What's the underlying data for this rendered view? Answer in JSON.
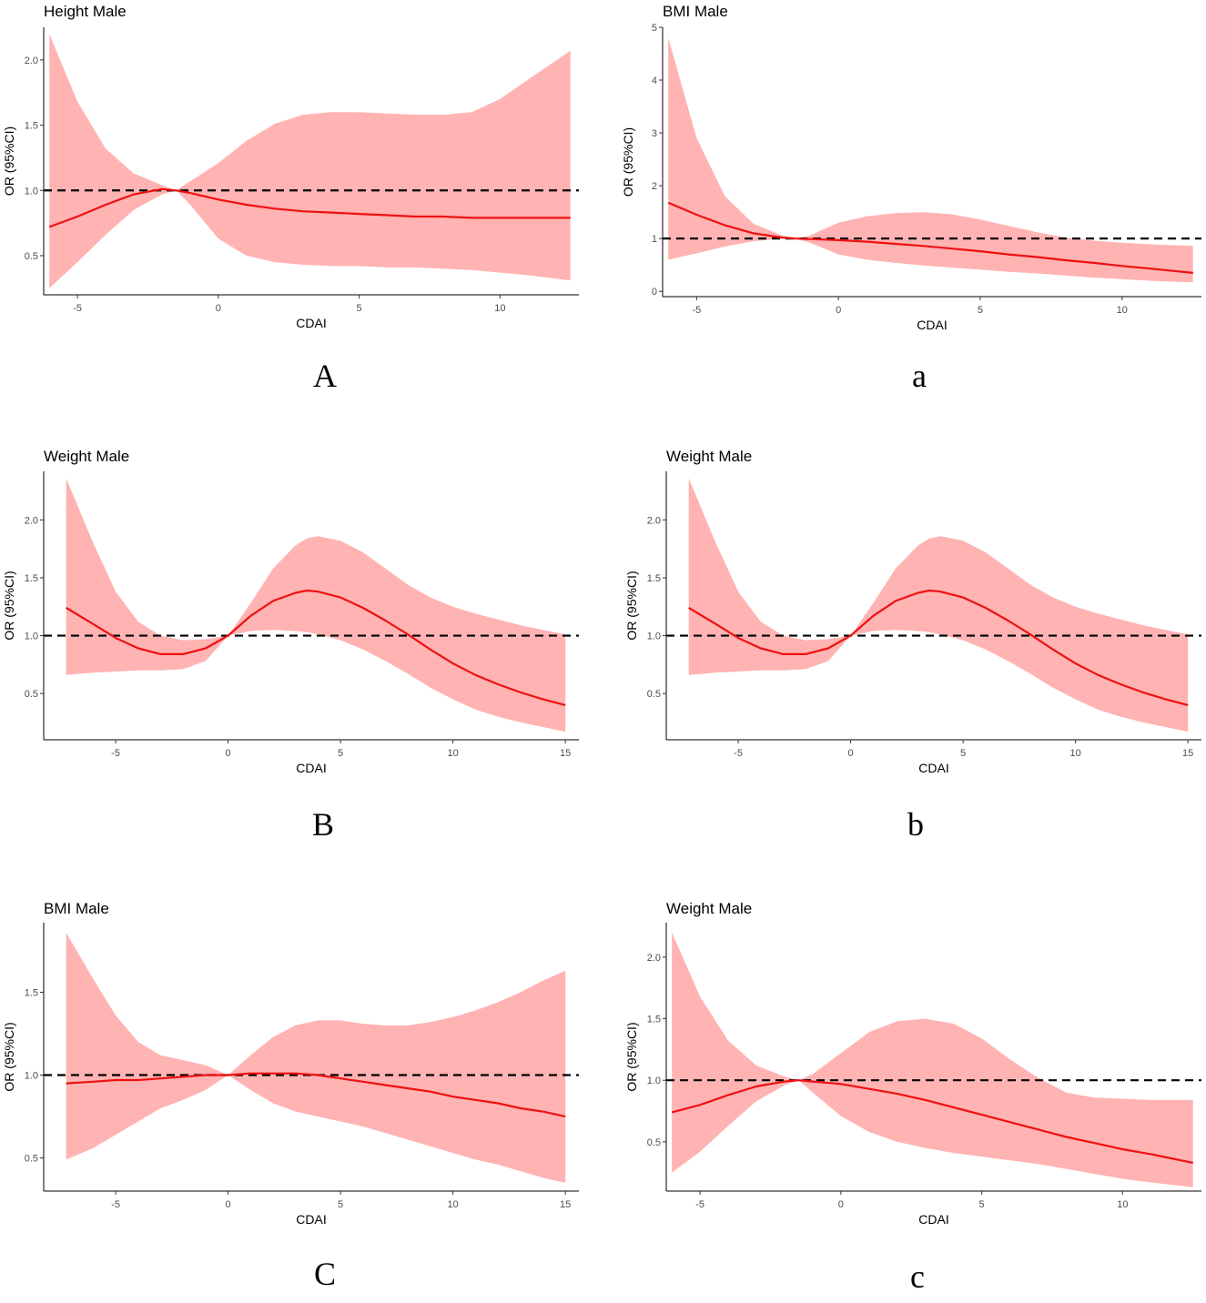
{
  "figure": {
    "panel_labels": [
      "A",
      "a",
      "B",
      "b",
      "C",
      "c"
    ]
  },
  "colors": {
    "ribbon": "#ffb3b3",
    "line": "#ee1111",
    "reference": "#000000",
    "axis": "#000000"
  },
  "chart_data": [
    {
      "type": "line",
      "title": "Height Male",
      "panel_label": "A",
      "xlabel": "CDAI",
      "ylabel": "OR (95%CI)",
      "xlim": [
        -6.2,
        12.8
      ],
      "ylim": [
        0.2,
        2.25
      ],
      "xticks": [
        -5,
        0,
        5,
        10
      ],
      "xtick_labels": [
        "-5",
        "0",
        "5",
        "10"
      ],
      "yticks": [
        0.5,
        1.0,
        1.5,
        2.0
      ],
      "ytick_labels": [
        "0.5",
        "1.0",
        "1.5",
        "2.0"
      ],
      "reference_line": 1.0,
      "series": [
        {
          "name": "OR",
          "x": [
            -6.0,
            -5.0,
            -4.0,
            -3.0,
            -2.0,
            -1.5,
            -1.0,
            0.0,
            1.0,
            2.0,
            3.0,
            4.0,
            5.0,
            6.0,
            7.0,
            8.0,
            9.0,
            10.0,
            11.0,
            12.5
          ],
          "y": [
            0.72,
            0.8,
            0.89,
            0.97,
            1.01,
            1.0,
            0.98,
            0.93,
            0.89,
            0.86,
            0.84,
            0.83,
            0.82,
            0.81,
            0.8,
            0.8,
            0.79,
            0.79,
            0.79,
            0.79
          ],
          "lower": [
            0.25,
            0.45,
            0.66,
            0.85,
            0.97,
            1.0,
            0.89,
            0.63,
            0.5,
            0.45,
            0.43,
            0.42,
            0.42,
            0.41,
            0.41,
            0.4,
            0.39,
            0.37,
            0.35,
            0.31
          ],
          "upper": [
            2.2,
            1.68,
            1.32,
            1.13,
            1.04,
            1.0,
            1.07,
            1.21,
            1.38,
            1.51,
            1.58,
            1.6,
            1.6,
            1.59,
            1.58,
            1.58,
            1.6,
            1.7,
            1.85,
            2.07
          ]
        }
      ]
    },
    {
      "type": "line",
      "title": "BMI Male",
      "panel_label": "a",
      "xlabel": "CDAI",
      "ylabel": "OR (95%CI)",
      "xlim": [
        -6.2,
        12.8
      ],
      "ylim": [
        -0.1,
        5.0
      ],
      "xticks": [
        -5,
        0,
        5,
        10
      ],
      "xtick_labels": [
        "-5",
        "0",
        "5",
        "10"
      ],
      "yticks": [
        0,
        1,
        2,
        3,
        4,
        5
      ],
      "ytick_labels": [
        "0",
        "1",
        "2",
        "3",
        "4",
        "5"
      ],
      "reference_line": 1,
      "series": [
        {
          "name": "OR",
          "x": [
            -6.0,
            -5.0,
            -4.0,
            -3.0,
            -2.0,
            -1.5,
            -1.0,
            0.0,
            1.0,
            2.0,
            3.0,
            4.0,
            5.0,
            6.0,
            7.0,
            8.0,
            9.0,
            10.0,
            11.0,
            12.5
          ],
          "y": [
            1.68,
            1.45,
            1.25,
            1.1,
            1.02,
            1.0,
            0.99,
            0.97,
            0.94,
            0.9,
            0.86,
            0.81,
            0.76,
            0.7,
            0.65,
            0.59,
            0.54,
            0.48,
            0.43,
            0.35
          ],
          "lower": [
            0.6,
            0.72,
            0.85,
            0.95,
            1.0,
            1.0,
            0.92,
            0.7,
            0.6,
            0.54,
            0.49,
            0.45,
            0.41,
            0.37,
            0.34,
            0.3,
            0.26,
            0.23,
            0.2,
            0.17
          ],
          "upper": [
            4.8,
            2.9,
            1.8,
            1.28,
            1.06,
            1.0,
            1.06,
            1.3,
            1.42,
            1.48,
            1.5,
            1.46,
            1.36,
            1.24,
            1.12,
            1.02,
            0.96,
            0.92,
            0.89,
            0.86
          ]
        }
      ]
    },
    {
      "type": "line",
      "title": "Weight Male",
      "panel_label": "B",
      "xlabel": "CDAI",
      "ylabel": "OR (95%CI)",
      "xlim": [
        -8.2,
        15.6
      ],
      "ylim": [
        0.1,
        2.42
      ],
      "xticks": [
        -5,
        0,
        5,
        10,
        15
      ],
      "xtick_labels": [
        "-5",
        "0",
        "5",
        "10",
        "15"
      ],
      "yticks": [
        0.5,
        1.0,
        1.5,
        2.0
      ],
      "ytick_labels": [
        "0.5",
        "1.0",
        "1.5",
        "2.0"
      ],
      "reference_line": 1.0,
      "series": [
        {
          "name": "OR",
          "x": [
            -7.2,
            -6.0,
            -5.0,
            -4.0,
            -3.0,
            -2.0,
            -1.0,
            0.0,
            1.0,
            2.0,
            3.0,
            3.5,
            4.0,
            5.0,
            6.0,
            7.0,
            8.0,
            9.0,
            10.0,
            11.0,
            12.0,
            13.0,
            14.0,
            15.0
          ],
          "y": [
            1.24,
            1.1,
            0.98,
            0.89,
            0.84,
            0.84,
            0.89,
            1.0,
            1.17,
            1.3,
            1.37,
            1.39,
            1.38,
            1.33,
            1.24,
            1.13,
            1.01,
            0.88,
            0.76,
            0.66,
            0.58,
            0.51,
            0.45,
            0.4
          ],
          "lower": [
            0.66,
            0.68,
            0.69,
            0.7,
            0.7,
            0.71,
            0.78,
            1.0,
            1.04,
            1.05,
            1.04,
            1.03,
            1.01,
            0.96,
            0.88,
            0.78,
            0.67,
            0.55,
            0.45,
            0.36,
            0.3,
            0.25,
            0.21,
            0.17
          ],
          "upper": [
            2.36,
            1.8,
            1.38,
            1.12,
            1.0,
            0.96,
            0.97,
            1.0,
            1.28,
            1.58,
            1.78,
            1.84,
            1.86,
            1.82,
            1.72,
            1.58,
            1.44,
            1.33,
            1.25,
            1.19,
            1.14,
            1.09,
            1.05,
            1.01
          ]
        }
      ]
    },
    {
      "type": "line",
      "title": "Weight Male",
      "panel_label": "b",
      "xlabel": "CDAI",
      "ylabel": "OR (95%CI)",
      "xlim": [
        -8.2,
        15.6
      ],
      "ylim": [
        0.1,
        2.42
      ],
      "xticks": [
        -5,
        0,
        5,
        10,
        15
      ],
      "xtick_labels": [
        "-5",
        "0",
        "5",
        "10",
        "15"
      ],
      "yticks": [
        0.5,
        1.0,
        1.5,
        2.0
      ],
      "ytick_labels": [
        "0.5",
        "1.0",
        "1.5",
        "2.0"
      ],
      "reference_line": 1.0,
      "series": [
        {
          "name": "OR",
          "x": [
            -7.2,
            -6.0,
            -5.0,
            -4.0,
            -3.0,
            -2.0,
            -1.0,
            0.0,
            1.0,
            2.0,
            3.0,
            3.5,
            4.0,
            5.0,
            6.0,
            7.0,
            8.0,
            9.0,
            10.0,
            11.0,
            12.0,
            13.0,
            14.0,
            15.0
          ],
          "y": [
            1.24,
            1.1,
            0.98,
            0.89,
            0.84,
            0.84,
            0.89,
            1.0,
            1.17,
            1.3,
            1.37,
            1.39,
            1.38,
            1.33,
            1.24,
            1.13,
            1.01,
            0.88,
            0.76,
            0.66,
            0.58,
            0.51,
            0.45,
            0.4
          ],
          "lower": [
            0.66,
            0.68,
            0.69,
            0.7,
            0.7,
            0.71,
            0.78,
            1.0,
            1.04,
            1.05,
            1.04,
            1.03,
            1.01,
            0.96,
            0.88,
            0.78,
            0.67,
            0.55,
            0.45,
            0.36,
            0.3,
            0.25,
            0.21,
            0.17
          ],
          "upper": [
            2.36,
            1.8,
            1.38,
            1.12,
            1.0,
            0.96,
            0.97,
            1.0,
            1.28,
            1.58,
            1.78,
            1.84,
            1.86,
            1.82,
            1.72,
            1.58,
            1.44,
            1.33,
            1.25,
            1.19,
            1.14,
            1.09,
            1.05,
            1.01
          ]
        }
      ]
    },
    {
      "type": "line",
      "title": "BMI Male",
      "panel_label": "C",
      "xlabel": "CDAI",
      "ylabel": "OR (95%CI)",
      "xlim": [
        -8.2,
        15.6
      ],
      "ylim": [
        0.3,
        1.92
      ],
      "xticks": [
        -5,
        0,
        5,
        10,
        15
      ],
      "xtick_labels": [
        "-5",
        "0",
        "5",
        "10",
        "15"
      ],
      "yticks": [
        0.5,
        1.0,
        1.5
      ],
      "ytick_labels": [
        "0.5",
        "1.0",
        "1.5"
      ],
      "reference_line": 1.0,
      "series": [
        {
          "name": "OR",
          "x": [
            -7.2,
            -6.0,
            -5.0,
            -4.0,
            -3.0,
            -2.0,
            -1.0,
            0.0,
            1.0,
            2.0,
            3.0,
            4.0,
            5.0,
            6.0,
            7.0,
            8.0,
            9.0,
            10.0,
            11.0,
            12.0,
            13.0,
            14.0,
            15.0
          ],
          "y": [
            0.95,
            0.96,
            0.97,
            0.97,
            0.98,
            0.99,
            1.0,
            1.0,
            1.01,
            1.01,
            1.01,
            1.0,
            0.98,
            0.96,
            0.94,
            0.92,
            0.9,
            0.87,
            0.85,
            0.83,
            0.8,
            0.78,
            0.75
          ],
          "lower": [
            0.49,
            0.56,
            0.64,
            0.72,
            0.8,
            0.85,
            0.91,
            1.0,
            0.91,
            0.83,
            0.78,
            0.75,
            0.72,
            0.69,
            0.65,
            0.61,
            0.57,
            0.53,
            0.49,
            0.46,
            0.42,
            0.38,
            0.35
          ],
          "upper": [
            1.86,
            1.58,
            1.36,
            1.2,
            1.12,
            1.09,
            1.06,
            1.0,
            1.12,
            1.23,
            1.3,
            1.33,
            1.33,
            1.31,
            1.3,
            1.3,
            1.32,
            1.35,
            1.39,
            1.44,
            1.5,
            1.57,
            1.63
          ]
        }
      ]
    },
    {
      "type": "line",
      "title": "Weight Male",
      "panel_label": "c",
      "xlabel": "CDAI",
      "ylabel": "OR (95%CI)",
      "xlim": [
        -6.2,
        12.8
      ],
      "ylim": [
        0.1,
        2.28
      ],
      "xticks": [
        -5,
        0,
        5,
        10
      ],
      "xtick_labels": [
        "-5",
        "0",
        "5",
        "10"
      ],
      "yticks": [
        0.5,
        1.0,
        1.5,
        2.0
      ],
      "ytick_labels": [
        "0.5",
        "1.0",
        "1.5",
        "2.0"
      ],
      "reference_line": 1.0,
      "series": [
        {
          "name": "OR",
          "x": [
            -6.0,
            -5.0,
            -4.0,
            -3.0,
            -2.0,
            -1.5,
            -1.0,
            0.0,
            1.0,
            2.0,
            3.0,
            4.0,
            5.0,
            6.0,
            7.0,
            8.0,
            9.0,
            10.0,
            11.0,
            12.5
          ],
          "y": [
            0.74,
            0.8,
            0.88,
            0.95,
            0.99,
            1.0,
            0.99,
            0.97,
            0.93,
            0.89,
            0.84,
            0.78,
            0.72,
            0.66,
            0.6,
            0.54,
            0.49,
            0.44,
            0.4,
            0.33
          ],
          "lower": [
            0.25,
            0.42,
            0.63,
            0.83,
            0.96,
            1.0,
            0.9,
            0.71,
            0.58,
            0.5,
            0.45,
            0.41,
            0.38,
            0.35,
            0.32,
            0.28,
            0.24,
            0.2,
            0.17,
            0.13
          ],
          "upper": [
            2.2,
            1.68,
            1.32,
            1.12,
            1.03,
            1.0,
            1.05,
            1.22,
            1.39,
            1.48,
            1.5,
            1.46,
            1.34,
            1.17,
            1.02,
            0.9,
            0.86,
            0.85,
            0.84,
            0.84
          ]
        }
      ]
    }
  ]
}
